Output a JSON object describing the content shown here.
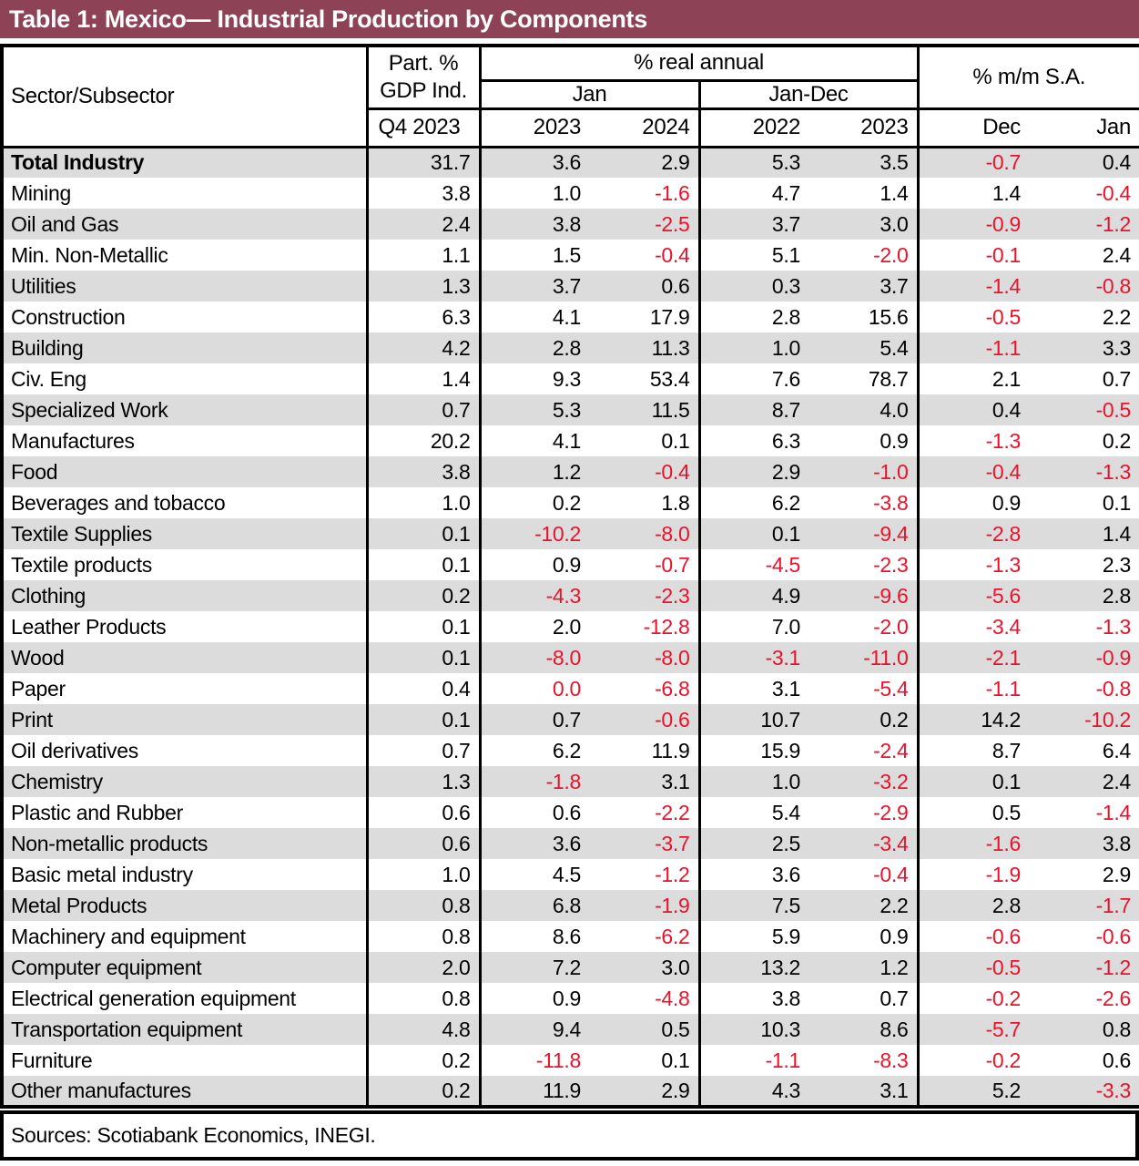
{
  "title": "Table 1: Mexico— Industrial Production by Components",
  "source_note": "Sources: Scotiabank Economics, INEGI.",
  "colors": {
    "title_bar": "#8D4255",
    "negative_text": "#E8132B",
    "row_stripe": "#DCDCDC",
    "border": "#000000"
  },
  "header": {
    "sector": "Sector/Subsector",
    "part_gdp": {
      "line1": "Part. %",
      "line2": "GDP Ind.",
      "sub": "Q4 2023"
    },
    "real_annual": {
      "label": "% real annual",
      "groups": [
        {
          "label": "Jan",
          "cols": [
            "2023",
            "2024"
          ]
        },
        {
          "label": "Jan-Dec",
          "cols": [
            "2022",
            "2023"
          ]
        }
      ]
    },
    "mm_sa": {
      "label": "% m/m S.A.",
      "cols": [
        "Dec",
        "Jan"
      ]
    }
  },
  "rows": [
    {
      "sector": "Total Industry",
      "bold": true,
      "values": [
        "31.7",
        "3.6",
        "2.9",
        "5.3",
        "3.5",
        "-0.7",
        "0.4"
      ],
      "red": [
        false,
        false,
        false,
        false,
        false,
        true,
        false
      ]
    },
    {
      "sector": "Mining",
      "bold": false,
      "values": [
        "3.8",
        "1.0",
        "-1.6",
        "4.7",
        "1.4",
        "1.4",
        "-0.4"
      ],
      "red": [
        false,
        false,
        true,
        false,
        false,
        false,
        true
      ]
    },
    {
      "sector": "Oil and Gas",
      "bold": false,
      "values": [
        "2.4",
        "3.8",
        "-2.5",
        "3.7",
        "3.0",
        "-0.9",
        "-1.2"
      ],
      "red": [
        false,
        false,
        true,
        false,
        false,
        true,
        true
      ]
    },
    {
      "sector": "Min. Non-Metallic",
      "bold": false,
      "values": [
        "1.1",
        "1.5",
        "-0.4",
        "5.1",
        "-2.0",
        "-0.1",
        "2.4"
      ],
      "red": [
        false,
        false,
        true,
        false,
        true,
        true,
        false
      ]
    },
    {
      "sector": "Utilities",
      "bold": false,
      "values": [
        "1.3",
        "3.7",
        "0.6",
        "0.3",
        "3.7",
        "-1.4",
        "-0.8"
      ],
      "red": [
        false,
        false,
        false,
        false,
        false,
        true,
        true
      ]
    },
    {
      "sector": "Construction",
      "bold": false,
      "values": [
        "6.3",
        "4.1",
        "17.9",
        "2.8",
        "15.6",
        "-0.5",
        "2.2"
      ],
      "red": [
        false,
        false,
        false,
        false,
        false,
        true,
        false
      ]
    },
    {
      "sector": "Building",
      "bold": false,
      "values": [
        "4.2",
        "2.8",
        "11.3",
        "1.0",
        "5.4",
        "-1.1",
        "3.3"
      ],
      "red": [
        false,
        false,
        false,
        false,
        false,
        true,
        false
      ]
    },
    {
      "sector": "Civ. Eng",
      "bold": false,
      "values": [
        "1.4",
        "9.3",
        "53.4",
        "7.6",
        "78.7",
        "2.1",
        "0.7"
      ],
      "red": [
        false,
        false,
        false,
        false,
        false,
        false,
        false
      ]
    },
    {
      "sector": "Specialized Work",
      "bold": false,
      "values": [
        "0.7",
        "5.3",
        "11.5",
        "8.7",
        "4.0",
        "0.4",
        "-0.5"
      ],
      "red": [
        false,
        false,
        false,
        false,
        false,
        false,
        true
      ]
    },
    {
      "sector": "Manufactures",
      "bold": false,
      "values": [
        "20.2",
        "4.1",
        "0.1",
        "6.3",
        "0.9",
        "-1.3",
        "0.2"
      ],
      "red": [
        false,
        false,
        false,
        false,
        false,
        true,
        false
      ]
    },
    {
      "sector": "Food",
      "bold": false,
      "values": [
        "3.8",
        "1.2",
        "-0.4",
        "2.9",
        "-1.0",
        "-0.4",
        "-1.3"
      ],
      "red": [
        false,
        false,
        true,
        false,
        true,
        true,
        true
      ]
    },
    {
      "sector": "Beverages and tobacco",
      "bold": false,
      "values": [
        "1.0",
        "0.2",
        "1.8",
        "6.2",
        "-3.8",
        "0.9",
        "0.1"
      ],
      "red": [
        false,
        false,
        false,
        false,
        true,
        false,
        false
      ]
    },
    {
      "sector": "Textile Supplies",
      "bold": false,
      "values": [
        "0.1",
        "-10.2",
        "-8.0",
        "0.1",
        "-9.4",
        "-2.8",
        "1.4"
      ],
      "red": [
        false,
        true,
        true,
        false,
        true,
        true,
        false
      ]
    },
    {
      "sector": "Textile products",
      "bold": false,
      "values": [
        "0.1",
        "0.9",
        "-0.7",
        "-4.5",
        "-2.3",
        "-1.3",
        "2.3"
      ],
      "red": [
        false,
        false,
        true,
        true,
        true,
        true,
        false
      ]
    },
    {
      "sector": "Clothing",
      "bold": false,
      "values": [
        "0.2",
        "-4.3",
        "-2.3",
        "4.9",
        "-9.6",
        "-5.6",
        "2.8"
      ],
      "red": [
        false,
        true,
        true,
        false,
        true,
        true,
        false
      ]
    },
    {
      "sector": "Leather Products",
      "bold": false,
      "values": [
        "0.1",
        "2.0",
        "-12.8",
        "7.0",
        "-2.0",
        "-3.4",
        "-1.3"
      ],
      "red": [
        false,
        false,
        true,
        false,
        true,
        true,
        true
      ]
    },
    {
      "sector": "Wood",
      "bold": false,
      "values": [
        "0.1",
        "-8.0",
        "-8.0",
        "-3.1",
        "-11.0",
        "-2.1",
        "-0.9"
      ],
      "red": [
        false,
        true,
        true,
        true,
        true,
        true,
        true
      ]
    },
    {
      "sector": "Paper",
      "bold": false,
      "values": [
        "0.4",
        "0.0",
        "-6.8",
        "3.1",
        "-5.4",
        "-1.1",
        "-0.8"
      ],
      "red": [
        false,
        true,
        true,
        false,
        true,
        true,
        true
      ]
    },
    {
      "sector": "Print",
      "bold": false,
      "values": [
        "0.1",
        "0.7",
        "-0.6",
        "10.7",
        "0.2",
        "14.2",
        "-10.2"
      ],
      "red": [
        false,
        false,
        true,
        false,
        false,
        false,
        true
      ]
    },
    {
      "sector": "Oil derivatives",
      "bold": false,
      "values": [
        "0.7",
        "6.2",
        "11.9",
        "15.9",
        "-2.4",
        "8.7",
        "6.4"
      ],
      "red": [
        false,
        false,
        false,
        false,
        true,
        false,
        false
      ]
    },
    {
      "sector": "Chemistry",
      "bold": false,
      "values": [
        "1.3",
        "-1.8",
        "3.1",
        "1.0",
        "-3.2",
        "0.1",
        "2.4"
      ],
      "red": [
        false,
        true,
        false,
        false,
        true,
        false,
        false
      ]
    },
    {
      "sector": "Plastic and Rubber",
      "bold": false,
      "values": [
        "0.6",
        "0.6",
        "-2.2",
        "5.4",
        "-2.9",
        "0.5",
        "-1.4"
      ],
      "red": [
        false,
        false,
        true,
        false,
        true,
        false,
        true
      ]
    },
    {
      "sector": "Non-metallic products",
      "bold": false,
      "values": [
        "0.6",
        "3.6",
        "-3.7",
        "2.5",
        "-3.4",
        "-1.6",
        "3.8"
      ],
      "red": [
        false,
        false,
        true,
        false,
        true,
        true,
        false
      ]
    },
    {
      "sector": "Basic metal industry",
      "bold": false,
      "values": [
        "1.0",
        "4.5",
        "-1.2",
        "3.6",
        "-0.4",
        "-1.9",
        "2.9"
      ],
      "red": [
        false,
        false,
        true,
        false,
        true,
        true,
        false
      ]
    },
    {
      "sector": "Metal Products",
      "bold": false,
      "values": [
        "0.8",
        "6.8",
        "-1.9",
        "7.5",
        "2.2",
        "2.8",
        "-1.7"
      ],
      "red": [
        false,
        false,
        true,
        false,
        false,
        false,
        true
      ]
    },
    {
      "sector": "Machinery and equipment",
      "bold": false,
      "values": [
        "0.8",
        "8.6",
        "-6.2",
        "5.9",
        "0.9",
        "-0.6",
        "-0.6"
      ],
      "red": [
        false,
        false,
        true,
        false,
        false,
        true,
        true
      ]
    },
    {
      "sector": "Computer equipment",
      "bold": false,
      "values": [
        "2.0",
        "7.2",
        "3.0",
        "13.2",
        "1.2",
        "-0.5",
        "-1.2"
      ],
      "red": [
        false,
        false,
        false,
        false,
        false,
        true,
        true
      ]
    },
    {
      "sector": "Electrical generation equipment",
      "bold": false,
      "values": [
        "0.8",
        "0.9",
        "-4.8",
        "3.8",
        "0.7",
        "-0.2",
        "-2.6"
      ],
      "red": [
        false,
        false,
        true,
        false,
        false,
        true,
        true
      ]
    },
    {
      "sector": "Transportation equipment",
      "bold": false,
      "values": [
        "4.8",
        "9.4",
        "0.5",
        "10.3",
        "8.6",
        "-5.7",
        "0.8"
      ],
      "red": [
        false,
        false,
        false,
        false,
        false,
        true,
        false
      ]
    },
    {
      "sector": "Furniture",
      "bold": false,
      "values": [
        "0.2",
        "-11.8",
        "0.1",
        "-1.1",
        "-8.3",
        "-0.2",
        "0.6"
      ],
      "red": [
        false,
        true,
        false,
        true,
        true,
        true,
        false
      ]
    },
    {
      "sector": "Other manufactures",
      "bold": false,
      "values": [
        "0.2",
        "11.9",
        "2.9",
        "4.3",
        "3.1",
        "5.2",
        "-3.3"
      ],
      "red": [
        false,
        false,
        false,
        false,
        false,
        false,
        true
      ]
    }
  ]
}
